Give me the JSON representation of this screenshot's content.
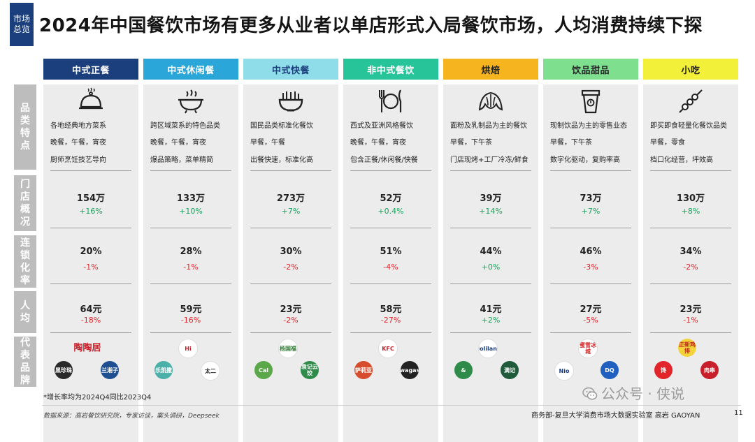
{
  "tag": "市场总览",
  "title": "2024年中国餐饮市场有更多从业者以单店形式入局餐饮市场，人均消费持续下探",
  "row_labels": [
    "品类特点",
    "门店概况",
    "连锁化率",
    "人均",
    "代表品牌"
  ],
  "colors": {
    "tag": "#1b3f7c",
    "row_label": "#bdbdbd",
    "panel": "#ececec",
    "positive": "#1aa35b",
    "negative": "#e2242b"
  },
  "categories": [
    {
      "name": "中式正餐",
      "header_color": "#1b3f7c",
      "header_text_color": "#ffffff",
      "icon": "cloche-icon",
      "features": [
        "各地经典地方菜系",
        "晚餐，午餐，宵夜",
        "厨师烹饪技艺导向"
      ],
      "stores": "154万",
      "stores_change": "+16%",
      "chain_rate": "20%",
      "chain_change": "-1%",
      "per_capita": "64元",
      "per_capita_change": "-18%",
      "brands": [
        "陶陶居",
        "黑珍珠",
        "兰湘子"
      ]
    },
    {
      "name": "中式休闲餐",
      "header_color": "#2aa6d8",
      "header_text_color": "#ffffff",
      "icon": "hotpot-icon",
      "features": [
        "跨区域菜系的特色品类",
        "晚餐，午餐，宵夜",
        "爆品策略，菜单精简"
      ],
      "stores": "133万",
      "stores_change": "+10%",
      "chain_rate": "28%",
      "chain_change": "-1%",
      "per_capita": "59元",
      "per_capita_change": "-16%",
      "brands": [
        "Hi",
        "乐凯撒",
        "太二"
      ]
    },
    {
      "name": "中式快餐",
      "header_color": "#8fdde8",
      "header_text_color": "#1b3f7c",
      "icon": "noodle-bowl-icon",
      "features": [
        "国民品类标准化餐饮",
        "早餐，午餐",
        "出餐快速，标准化高"
      ],
      "stores": "273万",
      "stores_change": "+7%",
      "chain_rate": "30%",
      "chain_change": "-2%",
      "per_capita": "23元",
      "per_capita_change": "-2%",
      "brands": [
        "杨国福",
        "Cal",
        "袁记云饺"
      ]
    },
    {
      "name": "非中式餐饮",
      "header_color": "#27c49a",
      "header_text_color": "#ffffff",
      "icon": "cutlery-icon",
      "features": [
        "西式及亚洲风格餐饮",
        "晚餐，午餐，宵夜",
        "包含正餐/休闲餐/快餐"
      ],
      "stores": "52万",
      "stores_change": "+0.4%",
      "chain_rate": "51%",
      "chain_change": "-4%",
      "per_capita": "58元",
      "per_capita_change": "-27%",
      "brands": [
        "KFC",
        "萨莉亚",
        "wagas"
      ]
    },
    {
      "name": "烘焙",
      "header_color": "#f6b51e",
      "header_text_color": "#222222",
      "icon": "croissant-icon",
      "features": [
        "面粉及乳制品为主的餐饮",
        "早餐，下午茶",
        "门店现烤+工厂冷冻/鲜食"
      ],
      "stores": "39万",
      "stores_change": "+14%",
      "chain_rate": "44%",
      "chain_change": "+0%",
      "per_capita": "41元",
      "per_capita_change": "+2%",
      "brands": [
        "Holiland",
        "&",
        "满记"
      ]
    },
    {
      "name": "饮品甜品",
      "header_color": "#7ee08f",
      "header_text_color": "#222222",
      "icon": "drink-cup-icon",
      "features": [
        "现制饮品为主的零售业态",
        "早餐，下午茶",
        "数字化驱动，复购率高"
      ],
      "stores": "73万",
      "stores_change": "+7%",
      "chain_rate": "46%",
      "chain_change": "-3%",
      "per_capita": "27元",
      "per_capita_change": "-5%",
      "brands": [
        "蜜雪冰城",
        "Nio",
        "DQ"
      ]
    },
    {
      "name": "小吃",
      "header_color": "#f3f03a",
      "header_text_color": "#222222",
      "icon": "skewer-icon",
      "features": [
        "即买即食轻量化餐饮品类",
        "早餐，零食",
        "档口化经营，坪效高"
      ],
      "stores": "130万",
      "stores_change": "+8%",
      "chain_rate": "34%",
      "chain_change": "-2%",
      "per_capita": "23元",
      "per_capita_change": "-1%",
      "brands": [
        "正新鸡排",
        "馋",
        "肉串"
      ]
    }
  ],
  "note": "*增长率均为2024Q4同比2023Q4",
  "source": "数据来源：高岩餐饮研究院，专家访谈，案头调研，Deepseek",
  "footer": "商务部-复旦大学消费市场大数据实验室   高岩 GAOYAN",
  "page_number": "11",
  "watermark": "公众号 · 侠说"
}
